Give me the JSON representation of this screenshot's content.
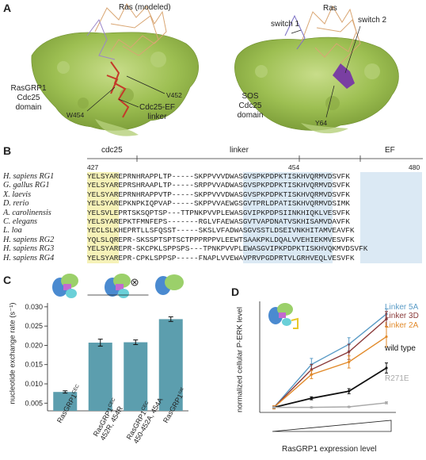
{
  "panelA": {
    "letter": "A",
    "left": {
      "ras_label": "Ras (modeled)",
      "domain_label": [
        "RasGRP1",
        "Cdc25",
        "domain"
      ],
      "residue_a": "V452",
      "residue_b": "W454",
      "linker_label": [
        "Cdc25-EF",
        "linker"
      ]
    },
    "right": {
      "ras_label": "Ras",
      "switch1": "switch 1",
      "switch2": "switch 2",
      "domain_label": [
        "SOS",
        "Cdc25",
        "domain"
      ],
      "residue": "Y64"
    }
  },
  "panelB": {
    "letter": "B",
    "regions": [
      "cdc25",
      "linker",
      "EF"
    ],
    "positions": [
      "427",
      "454",
      "480"
    ],
    "species": [
      "H. sapiens RG1",
      "G. gallus RG1",
      "X. laevis",
      "D. rerio",
      "A. carolinensis",
      "C. elegans",
      "L. loa",
      "H. sapiens RG2",
      "H. sapiens RG3",
      "H. sapiens RG4"
    ],
    "sequences": [
      "YELSYAREPRNHRAPPLTP-----SKPPVVVDWASGVSPKPDPKTISKHVQRMVDSVFK",
      "YELSYAREPRSHRAAPLTP-----SRPPVVADWASGVSPKPDPKTISKHVQRMVDSVFK",
      "YELSYAREPRNHRAPPVTP-----SKPPVVVDWASGVSPKPDPKTISKHVQRMVDSVFK",
      "YELSYAREPKNPKIQPVAP-----SKPPVVAEWGSGVTPRLDPATISKHVQRMVDSIMK",
      "YELSVLEPRTSKSQPTSP---TTPNKPVVPLEWASGVIPKPDPSIINKHIQKLVESVFK",
      "YELSYAREPKTFMNFEPS-------RGLVFAEWASGVTVAPDNATVSKHISAMVDAVFK",
      "YECLSLKHEPRTLLSFQSST-----SKSLVFADWASGVSSTLDSEIVNKHITAMVEAVFK",
      "YQLSLQREPR-SKSSPTSPTSCTPPPRPPVLEEWTSAAKPKLDQALVVEHIEKMVESVFK",
      "YELSYAREPR-SKCPKLSPPSPS---TPNKPVVPLEWASGVIPKPDPKTISKHVQKMVDSVFK",
      "YELSYAREPR-CPKLSPPSP-----FNAPLVVEWAVPRVPGDPRTVLGRHVEQLVESVFK"
    ]
  },
  "panelC": {
    "letter": "C",
    "ylabel": "nucleotide exchange rate (s⁻¹)",
    "yticks": [
      "0.005",
      "0.010",
      "0.015",
      "0.020",
      "0.025",
      "0.030"
    ],
    "categories": [
      [
        "RasGRP1",
        "CEC",
        "",
        ""
      ],
      [
        "RasGRP1",
        "CEC",
        "452R, 454R",
        ""
      ],
      [
        "RasGRP1",
        "CEC",
        "450-452A, 454A",
        ""
      ],
      [
        "RasGRP1",
        "cat",
        "",
        ""
      ]
    ]
  },
  "panelD": {
    "letter": "D",
    "ylabel": "normalized cellular  P-ERK level",
    "xlabel": "RasGRP1 expression level",
    "series_names": [
      "Linker 5A",
      "Linker 3D",
      "Linker 2A",
      "wild type",
      "R271E"
    ],
    "colors": {
      "linker5a": "#5a9bc6",
      "linker3d": "#8a3a3a",
      "linker2a": "#e28a2a",
      "wildtype": "#111111",
      "r271e": "#a9a9a9"
    }
  },
  "chart_data": [
    {
      "type": "bar",
      "categories": [
        "RasGRP1 CEC",
        "RasGRP1 CEC 452R, 454R",
        "RasGRP1 CEC 450-452A, 454A",
        "RasGRP1 cat"
      ],
      "values": [
        0.0079,
        0.0207,
        0.0208,
        0.0268
      ],
      "errors": [
        0.0003,
        0.0009,
        0.0006,
        0.0006
      ],
      "ylabel": "nucleotide exchange rate (s⁻¹)",
      "ylim": [
        0.003,
        0.031
      ],
      "color": "#5c9eae"
    },
    {
      "type": "line",
      "x": [
        1,
        2,
        3,
        4
      ],
      "xlabel": "RasGRP1 expression level",
      "ylabel": "normalized cellular  P-ERK level",
      "ylim": [
        0,
        22
      ],
      "series": [
        {
          "name": "Linker 5A",
          "values": [
            1,
            9.5,
            13.5,
            19.5
          ],
          "errors": [
            0.3,
            1.2,
            1.3,
            1.0
          ]
        },
        {
          "name": "Linker 3D",
          "values": [
            1,
            8.5,
            12.0,
            18.5
          ],
          "errors": [
            0.3,
            1.0,
            1.5,
            1.5
          ]
        },
        {
          "name": "Linker 2A",
          "values": [
            1,
            7.5,
            10.0,
            15.0
          ],
          "errors": [
            0.3,
            0.8,
            1.2,
            2.0
          ]
        },
        {
          "name": "wild type",
          "values": [
            1,
            2.8,
            4.2,
            8.8
          ],
          "errors": [
            0.1,
            0.3,
            0.5,
            1.0
          ]
        },
        {
          "name": "R271E",
          "values": [
            1,
            1.0,
            1.1,
            1.9
          ],
          "errors": [
            0.1,
            0.1,
            0.1,
            0.2
          ]
        }
      ]
    }
  ]
}
